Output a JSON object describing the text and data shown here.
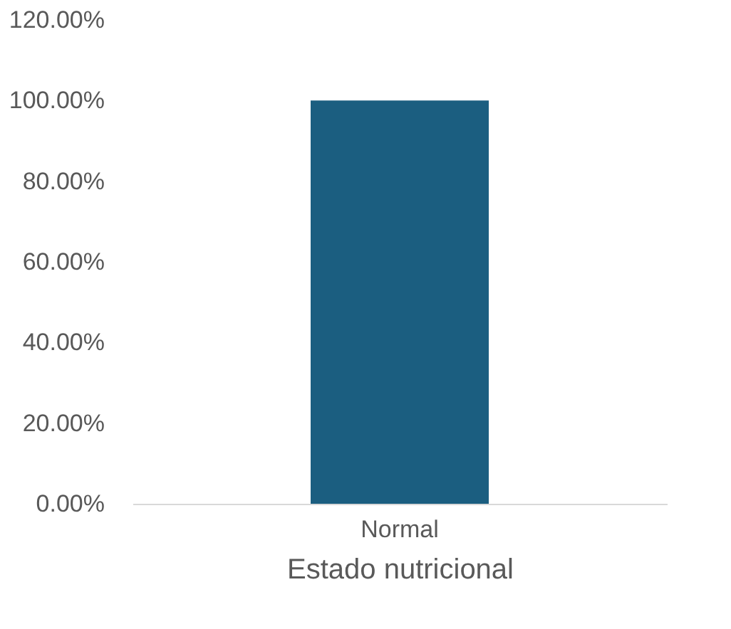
{
  "chart_data": {
    "type": "bar",
    "xlabel": "Estado nutricional",
    "categories": [
      "Normal"
    ],
    "series": [
      {
        "color": "#1b5e80",
        "values": [
          100
        ]
      }
    ],
    "ylim": [
      0,
      120
    ],
    "yticks": [
      {
        "value": 0,
        "label": "0.00%"
      },
      {
        "value": 20,
        "label": "20.00%"
      },
      {
        "value": 40,
        "label": "40.00%"
      },
      {
        "value": 60,
        "label": "60.00%"
      },
      {
        "value": 80,
        "label": "80.00%"
      },
      {
        "value": 100,
        "label": "100.00%"
      },
      {
        "value": 120,
        "label": "120.00%"
      }
    ],
    "grid": false,
    "legend": false
  }
}
